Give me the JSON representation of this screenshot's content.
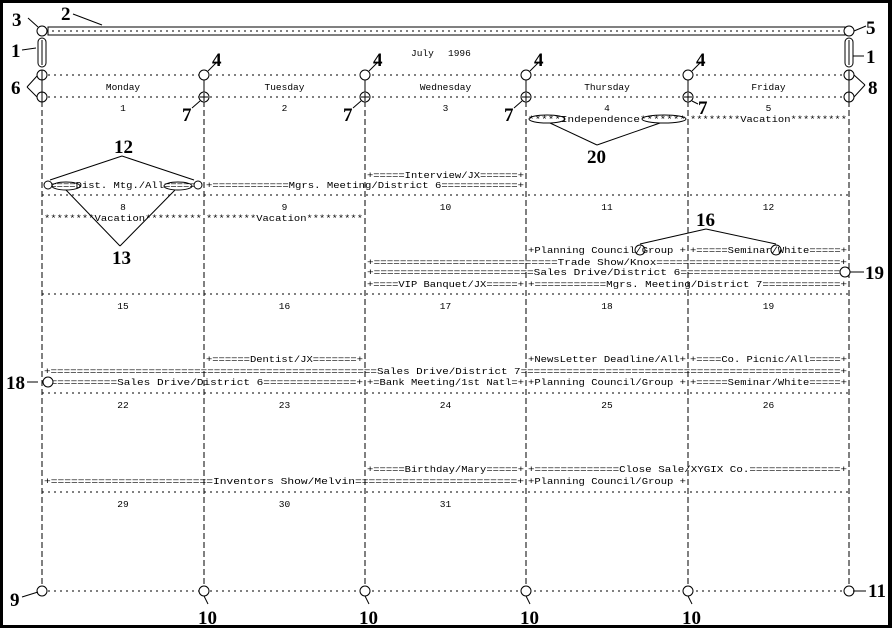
{
  "calendar": {
    "month_label": "July",
    "year_label": "1996",
    "weekdays": [
      "Monday",
      "Tuesday",
      "Wednesday",
      "Thursday",
      "Friday"
    ],
    "weeks": [
      [
        "1",
        "2",
        "3",
        "4",
        "5"
      ],
      [
        "8",
        "9",
        "10",
        "11",
        "12"
      ],
      [
        "15",
        "16",
        "17",
        "18",
        "19"
      ],
      [
        "22",
        "23",
        "24",
        "25",
        "26"
      ],
      [
        "29",
        "30",
        "31",
        "",
        ""
      ]
    ],
    "events": [
      {
        "text": "*****Independence*******",
        "start_day": 4,
        "end_day": 4
      },
      {
        "text": "********Vacation*********",
        "start_day": 5,
        "end_day": 5
      },
      {
        "text": "+=====Interview/JX======+",
        "start_day": 3,
        "end_day": 3
      },
      {
        "text": "+====Dist. Mtg./All=====+",
        "start_day": 1,
        "end_day": 1
      },
      {
        "text": "+============Mgrs. Meeting/District 6============+",
        "start_day": 2,
        "end_day": 3
      },
      {
        "text": "********Vacation*********",
        "start_day": 8,
        "end_day": 8
      },
      {
        "text": "********Vacation*********",
        "start_day": 9,
        "end_day": 9
      },
      {
        "text": "+Planning Council/Group +",
        "start_day": 11,
        "end_day": 11
      },
      {
        "text": "+=====Seminar/White=====+",
        "start_day": 12,
        "end_day": 12
      },
      {
        "text": "+============================Trade Show/Knox============================+",
        "start_day": 10,
        "end_day": 12
      },
      {
        "text": "+========================Sales Drive/District 6=========================",
        "start_day": 10,
        "end_day": 12
      },
      {
        "text": "+====VIP Banquet/JX=====+",
        "start_day": 10,
        "end_day": 10
      },
      {
        "text": "+===========Mgrs. Meeting/District 7============+",
        "start_day": 11,
        "end_day": 12
      },
      {
        "text": "+======Dentist/JX=======+",
        "start_day": 16,
        "end_day": 16
      },
      {
        "text": "+NewsLetter Deadline/All+",
        "start_day": 18,
        "end_day": 18
      },
      {
        "text": "+====Co. Picnic/All=====+",
        "start_day": 19,
        "end_day": 19
      },
      {
        "text": "+==================================================Sales Drive/District 7=================================================+",
        "start_day": 15,
        "end_day": 19
      },
      {
        "text": " ===========Sales Drive/District 6==============+",
        "start_day": 15,
        "end_day": 16
      },
      {
        "text": "+=Bank Meeting/1st Natl=+",
        "start_day": 17,
        "end_day": 17
      },
      {
        "text": "+Planning Council/Group +",
        "start_day": 18,
        "end_day": 18
      },
      {
        "text": "+=====Seminar/White=====+",
        "start_day": 19,
        "end_day": 19
      },
      {
        "text": "+=====Birthday/Mary=====+",
        "start_day": 24,
        "end_day": 24
      },
      {
        "text": "+=============Close Sale/XYGIX Co.==============+",
        "start_day": 25,
        "end_day": 26
      },
      {
        "text": "+========================Inventors Show/Melvin========================+",
        "start_day": 22,
        "end_day": 24
      },
      {
        "text": "+Planning Council/Group +",
        "start_day": 25,
        "end_day": 25
      }
    ]
  },
  "reference_numerals": {
    "r1_left": "1",
    "r1_right": "1",
    "r2": "2",
    "r3": "3",
    "r4": "4",
    "r5": "5",
    "r6": "6",
    "r7": "7",
    "r8": "8",
    "r9": "9",
    "r10": "10",
    "r11": "11",
    "r12": "12",
    "r13": "13",
    "r16": "16",
    "r18": "18",
    "r19": "19",
    "r20": "20"
  }
}
